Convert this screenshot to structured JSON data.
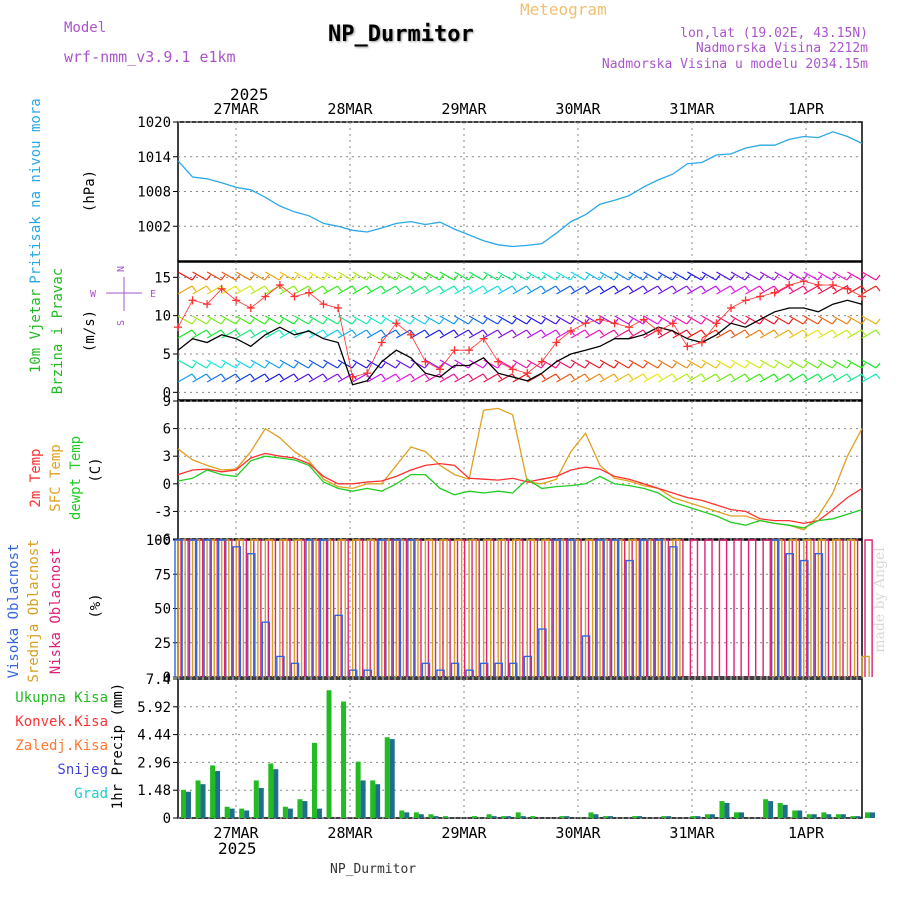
{
  "header": {
    "model_label": "Model",
    "model_name": "wrf-nmm_v3.9.1 e1km",
    "title": "NP_Durmitor",
    "subtitle": "Meteogram",
    "coords": "lon,lat (19.02E, 43.15N)",
    "elevation": "Nadmorska Visina 2212m",
    "model_elevation": "Nadmorska Visina u modelu 2034.15m",
    "watermark": "made by Angel",
    "footer": "NP_Durmitor"
  },
  "colors": {
    "pressure": "#2aa8e8",
    "wind_speed": "#000000",
    "wind_gust": "#ff3030",
    "t2m": "#ff3030",
    "tsfc": "#e0a020",
    "dewpt": "#22cc22",
    "cloud_high": "#3366dd",
    "cloud_mid": "#d8a020",
    "cloud_low": "#dd2277",
    "precip_total": "#22bb22",
    "precip_conv": "#ff3333",
    "precip_frozen": "#ff7733",
    "precip_snow": "#4444dd",
    "precip_graupel": "#22cccc",
    "label_purple": "#aa55cc"
  },
  "chart_data": [
    {
      "type": "line",
      "panel": "pressure",
      "ylabel": "Pritisak na nivou mora",
      "unit": "(hPa)",
      "ylim": [
        996,
        1020
      ],
      "yticks": [
        "1020",
        "1014",
        "1008",
        "1002"
      ],
      "x_top_year": "2025",
      "x_ticks": [
        "27MAR",
        "28MAR",
        "29MAR",
        "30MAR",
        "31MAR",
        "1APR"
      ],
      "x_hours": [
        0,
        3,
        6,
        9,
        12,
        15,
        18,
        21,
        24,
        27,
        30,
        33,
        36,
        39,
        42,
        45,
        48,
        51,
        54,
        57,
        60,
        63,
        66,
        69,
        72,
        75,
        78,
        81,
        84,
        87,
        90,
        93,
        96,
        99,
        102,
        105,
        108,
        111,
        114,
        117,
        120,
        123,
        126,
        129,
        132,
        135,
        138,
        141
      ],
      "series": [
        {
          "values": [
            1013.3,
            1010.5,
            1010.2,
            1009.5,
            1008.7,
            1008.3,
            1007.0,
            1005.5,
            1004.5,
            1003.8,
            1002.5,
            1002.0,
            1001.3,
            1001.0,
            1001.7,
            1002.5,
            1002.8,
            1002.3,
            1002.7,
            1001.5,
            1000.5,
            999.5,
            998.8,
            998.5,
            998.7,
            999.0,
            1000.8,
            1002.8,
            1004.0,
            1005.8,
            1006.5,
            1007.3,
            1008.8,
            1010.0,
            1011.0,
            1012.8,
            1013.0,
            1014.3,
            1014.5,
            1015.5,
            1016.0,
            1016.0,
            1017.0,
            1017.5,
            1017.3,
            1018.3,
            1017.5,
            1016.3
          ]
        }
      ]
    },
    {
      "type": "line",
      "panel": "wind",
      "ylabel": "10m Vjetar Brzina i Pravac",
      "unit": "(m/s)",
      "ylim": [
        -1,
        17
      ],
      "yticks": [
        "15",
        "10",
        "5",
        "0"
      ],
      "compass": [
        "N",
        "W",
        "E",
        "S"
      ],
      "x_hours": [
        0,
        3,
        6,
        9,
        12,
        15,
        18,
        21,
        24,
        27,
        30,
        33,
        36,
        39,
        42,
        45,
        48,
        51,
        54,
        57,
        60,
        63,
        66,
        69,
        72,
        75,
        78,
        81,
        84,
        87,
        90,
        93,
        96,
        99,
        102,
        105,
        108,
        111,
        114,
        117,
        120,
        123,
        126,
        129,
        132,
        135,
        138,
        141
      ],
      "series": [
        {
          "name": "speed",
          "values": [
            5.5,
            7.0,
            6.5,
            7.5,
            7.0,
            6.0,
            7.5,
            8.5,
            7.5,
            8.0,
            7.0,
            6.5,
            1.0,
            1.5,
            4.0,
            5.5,
            4.5,
            2.5,
            2.0,
            3.5,
            3.5,
            4.5,
            2.5,
            2.0,
            1.5,
            2.5,
            4.0,
            5.0,
            5.5,
            6.0,
            7.0,
            7.0,
            7.5,
            8.5,
            8.0,
            7.0,
            6.5,
            7.5,
            9.0,
            8.5,
            9.5,
            10.5,
            11.0,
            11.0,
            10.5,
            11.5,
            12.0,
            11.5
          ]
        },
        {
          "name": "gust",
          "values": [
            8.5,
            12.0,
            11.5,
            13.5,
            12.0,
            11.0,
            12.5,
            14.0,
            12.5,
            13.0,
            11.5,
            11.0,
            2.0,
            2.5,
            6.5,
            9.0,
            7.5,
            4.0,
            3.0,
            5.5,
            5.5,
            7.0,
            4.0,
            3.0,
            2.5,
            4.0,
            6.5,
            8.0,
            9.0,
            9.5,
            9.0,
            8.5,
            9.5,
            8.0,
            9.0,
            6.0,
            6.5,
            9.0,
            11.0,
            12.0,
            12.5,
            13.0,
            14.0,
            14.5,
            14.0,
            14.0,
            13.5,
            12.5
          ]
        }
      ]
    },
    {
      "type": "line",
      "panel": "temperature",
      "ylabels": [
        "2m Temp",
        "SFC Temp",
        "dewpt Temp"
      ],
      "unit": "(C)",
      "ylim": [
        -6,
        9
      ],
      "yticks": [
        "9",
        "6",
        "3",
        "0",
        "-3",
        "-6"
      ],
      "x_hours": [
        0,
        3,
        6,
        9,
        12,
        15,
        18,
        21,
        24,
        27,
        30,
        33,
        36,
        39,
        42,
        45,
        48,
        51,
        54,
        57,
        60,
        63,
        66,
        69,
        72,
        75,
        78,
        81,
        84,
        87,
        90,
        93,
        96,
        99,
        102,
        105,
        108,
        111,
        114,
        117,
        120,
        123,
        126,
        129,
        132,
        135,
        138,
        141
      ],
      "series": [
        {
          "name": "2m",
          "values": [
            1.0,
            1.5,
            1.6,
            1.3,
            1.5,
            2.8,
            3.3,
            3.0,
            2.8,
            2.2,
            0.8,
            0.0,
            0.0,
            0.2,
            0.3,
            0.8,
            1.5,
            2.0,
            2.2,
            2.0,
            0.6,
            0.5,
            0.4,
            0.6,
            0.2,
            0.5,
            0.8,
            1.5,
            1.8,
            1.6,
            0.8,
            0.5,
            0.0,
            -0.5,
            -1.0,
            -1.5,
            -1.8,
            -2.3,
            -2.8,
            -3.0,
            -3.8,
            -4.0,
            -4.0,
            -4.3,
            -4.0,
            -2.8,
            -1.5,
            -0.5
          ]
        },
        {
          "name": "sfc",
          "values": [
            3.8,
            2.6,
            2.0,
            1.5,
            1.6,
            3.5,
            6.0,
            5.0,
            3.5,
            2.5,
            0.5,
            -0.3,
            -0.5,
            0.0,
            0.0,
            2.0,
            4.0,
            3.5,
            2.0,
            1.0,
            0.5,
            8.0,
            8.2,
            7.5,
            0.2,
            0.0,
            0.5,
            3.5,
            5.5,
            2.0,
            0.6,
            0.3,
            -0.2,
            -0.5,
            -1.5,
            -2.0,
            -2.5,
            -3.0,
            -3.5,
            -3.5,
            -4.0,
            -4.3,
            -4.5,
            -5.0,
            -3.5,
            -1.0,
            3.0,
            6.0
          ]
        },
        {
          "name": "dewpt",
          "values": [
            0.3,
            0.6,
            1.5,
            1.0,
            0.8,
            2.5,
            3.0,
            2.8,
            2.6,
            2.0,
            0.2,
            -0.5,
            -0.8,
            -0.5,
            -0.8,
            0.0,
            1.0,
            1.0,
            -0.5,
            -1.2,
            -0.8,
            -1.0,
            -0.8,
            -1.0,
            0.5,
            -0.5,
            -0.3,
            -0.2,
            0.0,
            0.8,
            0.0,
            -0.2,
            -0.5,
            -1.0,
            -2.0,
            -2.5,
            -3.0,
            -3.5,
            -4.2,
            -4.5,
            -4.0,
            -4.3,
            -4.5,
            -4.8,
            -4.0,
            -3.8,
            -3.3,
            -2.8
          ]
        }
      ]
    },
    {
      "type": "bar",
      "panel": "clouds",
      "ylabels": [
        "Visoka Oblacnost",
        "Srednja Oblacnost",
        "Niska Oblacnost"
      ],
      "unit": "(%)",
      "ylim": [
        0,
        100
      ],
      "yticks": [
        "100",
        "75",
        "50",
        "25",
        "0"
      ],
      "x_hours": [
        0,
        3,
        6,
        9,
        12,
        15,
        18,
        21,
        24,
        27,
        30,
        33,
        36,
        39,
        42,
        45,
        48,
        51,
        54,
        57,
        60,
        63,
        66,
        69,
        72,
        75,
        78,
        81,
        84,
        87,
        90,
        93,
        96,
        99,
        102,
        105,
        108,
        111,
        114,
        117,
        120,
        123,
        126,
        129,
        132,
        135,
        138,
        141
      ],
      "series": [
        {
          "name": "high",
          "values": [
            100,
            100,
            100,
            100,
            95,
            90,
            40,
            15,
            10,
            100,
            100,
            45,
            5,
            5,
            100,
            100,
            100,
            10,
            5,
            10,
            5,
            10,
            10,
            10,
            15,
            35,
            100,
            100,
            30,
            100,
            100,
            85,
            100,
            100,
            95,
            0,
            0,
            0,
            0,
            0,
            0,
            100,
            90,
            85,
            90,
            0,
            0,
            0
          ]
        },
        {
          "name": "mid",
          "values": [
            100,
            100,
            100,
            100,
            100,
            100,
            100,
            100,
            100,
            100,
            100,
            100,
            100,
            100,
            100,
            100,
            100,
            100,
            100,
            100,
            100,
            100,
            100,
            100,
            100,
            100,
            100,
            100,
            100,
            100,
            100,
            100,
            100,
            100,
            100,
            0,
            0,
            0,
            0,
            0,
            0,
            100,
            100,
            100,
            100,
            100,
            100,
            15
          ]
        },
        {
          "name": "low",
          "values": [
            100,
            100,
            100,
            100,
            100,
            100,
            100,
            100,
            100,
            100,
            100,
            100,
            100,
            100,
            100,
            100,
            100,
            100,
            100,
            100,
            100,
            100,
            100,
            100,
            100,
            100,
            100,
            100,
            100,
            100,
            100,
            100,
            100,
            100,
            100,
            100,
            100,
            100,
            100,
            100,
            100,
            100,
            100,
            100,
            100,
            100,
            100,
            100
          ]
        }
      ]
    },
    {
      "type": "bar",
      "panel": "precipitation",
      "ylabel": "1hr Precip",
      "unit": "(mm)",
      "legend": [
        "Ukupna Kisa",
        "Konvek.Kisa",
        "Zaledj.Kisa",
        "Snijeg",
        "Grad"
      ],
      "ylim": [
        0,
        7.4
      ],
      "yticks": [
        "7.4",
        "5.92",
        "4.44",
        "2.96",
        "1.48",
        "0"
      ],
      "x_bottom_year": "2025",
      "x_ticks": [
        "27MAR",
        "28MAR",
        "29MAR",
        "30MAR",
        "31MAR",
        "1APR"
      ],
      "x_hours": [
        0,
        3,
        6,
        9,
        12,
        15,
        18,
        21,
        24,
        27,
        30,
        33,
        36,
        39,
        42,
        45,
        48,
        51,
        54,
        57,
        60,
        63,
        66,
        69,
        72,
        75,
        78,
        81,
        84,
        87,
        90,
        93,
        96,
        99,
        102,
        105,
        108,
        111,
        114,
        117,
        120,
        123,
        126,
        129,
        132,
        135,
        138,
        141
      ],
      "series": [
        {
          "name": "Ukupna Kisa",
          "values": [
            1.5,
            2.0,
            2.8,
            0.6,
            0.5,
            2.0,
            2.9,
            0.6,
            1.0,
            4.0,
            6.8,
            6.2,
            3.0,
            2.0,
            4.3,
            0.4,
            0.3,
            0.2,
            0.1,
            0.0,
            0.1,
            0.2,
            0.1,
            0.3,
            0.1,
            0.0,
            0.1,
            0.0,
            0.3,
            0.1,
            0.0,
            0.1,
            0.0,
            0.1,
            0.0,
            0.1,
            0.2,
            0.9,
            0.3,
            0.0,
            1.0,
            0.8,
            0.4,
            0.2,
            0.3,
            0.2,
            0.1,
            0.3
          ]
        },
        {
          "name": "Snijeg",
          "values": [
            1.4,
            1.8,
            2.5,
            0.5,
            0.4,
            1.6,
            2.6,
            0.5,
            0.9,
            0.5,
            0.0,
            0.0,
            2.0,
            1.8,
            4.2,
            0.3,
            0.2,
            0.1,
            0.0,
            0.0,
            0.0,
            0.1,
            0.1,
            0.1,
            0.0,
            0.0,
            0.1,
            0.0,
            0.2,
            0.1,
            0.0,
            0.1,
            0.0,
            0.1,
            0.0,
            0.1,
            0.2,
            0.8,
            0.3,
            0.0,
            0.9,
            0.7,
            0.4,
            0.2,
            0.2,
            0.2,
            0.1,
            0.3
          ]
        }
      ]
    }
  ]
}
